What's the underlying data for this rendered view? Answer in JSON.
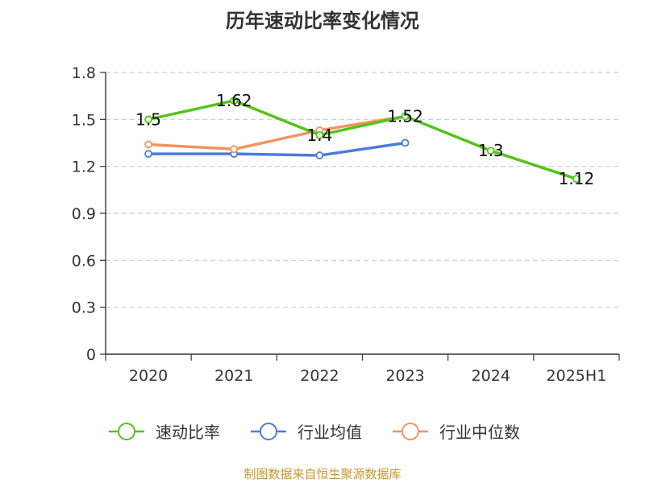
{
  "title": "历年速动比率变化情况",
  "source": "制图数据来自恒生聚源数据库",
  "chart_data": {
    "type": "line",
    "title": "历年速动比率变化情况",
    "categories": [
      "2020",
      "2021",
      "2022",
      "2023",
      "2024",
      "2025H1"
    ],
    "ylim": [
      0,
      1.8
    ],
    "yticks": [
      "0",
      "0.3",
      "0.6",
      "0.9",
      "1.2",
      "1.5",
      "1.8"
    ],
    "grid": true,
    "legend_position": "bottom",
    "series": [
      {
        "name": "速动比率",
        "color": "#52c41a",
        "values": [
          1.5,
          1.62,
          1.4,
          1.52,
          1.3,
          1.12
        ],
        "labels": [
          "1.5",
          "1.62",
          "1.4",
          "1.52",
          "1.3",
          "1.12"
        ]
      },
      {
        "name": "行业均值",
        "color": "#4a7bdc",
        "values": [
          1.28,
          1.28,
          1.27,
          1.35,
          null,
          null
        ]
      },
      {
        "name": "行业中位数",
        "color": "#f5925e",
        "values": [
          1.34,
          1.31,
          1.43,
          1.52,
          null,
          null
        ]
      }
    ]
  }
}
